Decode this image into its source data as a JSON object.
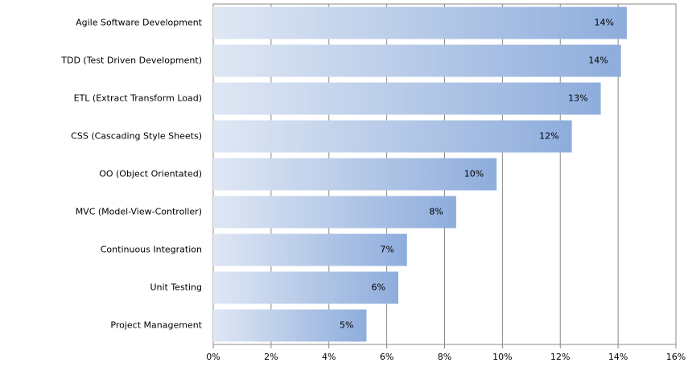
{
  "chart_data": {
    "type": "hbar",
    "categories": [
      "Agile Software Development",
      "TDD (Test Driven Development)",
      "ETL (Extract Transform Load)",
      "CSS (Cascading Style Sheets)",
      "OO (Object Orientated)",
      "MVC (Model-View-Controller)",
      "Continuous Integration",
      "Unit Testing",
      "Project Management"
    ],
    "values": [
      14.3,
      14.1,
      13.4,
      12.4,
      9.8,
      8.4,
      6.7,
      6.4,
      5.3
    ],
    "value_labels": [
      "14%",
      "14%",
      "13%",
      "12%",
      "10%",
      "8%",
      "7%",
      "6%",
      "5%"
    ],
    "color": "#8eaddc",
    "gradient_start": "#dfe7f4",
    "xlim": [
      0,
      16
    ],
    "xticks": [
      {
        "value": 0,
        "label": "0%"
      },
      {
        "value": 2,
        "label": "2%"
      },
      {
        "value": 4,
        "label": "4%"
      },
      {
        "value": 6,
        "label": "6%"
      },
      {
        "value": 8,
        "label": "8%"
      },
      {
        "value": 10,
        "label": "10%"
      },
      {
        "value": 12,
        "label": "12%"
      },
      {
        "value": 14,
        "label": "14%"
      },
      {
        "value": 16,
        "label": "16%"
      }
    ],
    "grid": true
  }
}
